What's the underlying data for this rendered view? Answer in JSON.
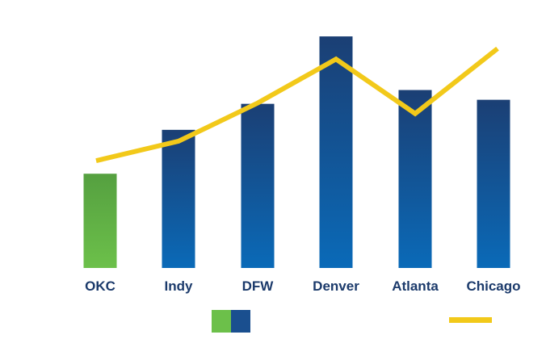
{
  "chart_data": {
    "type": "bar",
    "categories": [
      "OKC",
      "Indy",
      "DFW",
      "Denver",
      "Atlanta",
      "Chicago"
    ],
    "series": [
      {
        "type": "bar",
        "values": [
          116,
          170,
          202,
          285,
          219,
          207
        ]
      },
      {
        "type": "line",
        "values": [
          132,
          156,
          203,
          257,
          190,
          270
        ]
      }
    ],
    "ylim": [
      0,
      300
    ],
    "grid": false,
    "legend": "bottom",
    "legend_items": [
      {
        "kind": "bar-swatch",
        "colors": [
          "#6cc04a",
          "#1a4f8f"
        ]
      },
      {
        "kind": "line-swatch",
        "color": "#f2c91a"
      }
    ],
    "colors": {
      "bar_top": "#1b3f74",
      "bar_bottom": "#0a6ab8",
      "highlight_top": "#55a040",
      "highlight_bottom": "#6cc04a",
      "line": "#f2c91a",
      "label": "#1b3a6b"
    },
    "highlight_index": 0
  }
}
